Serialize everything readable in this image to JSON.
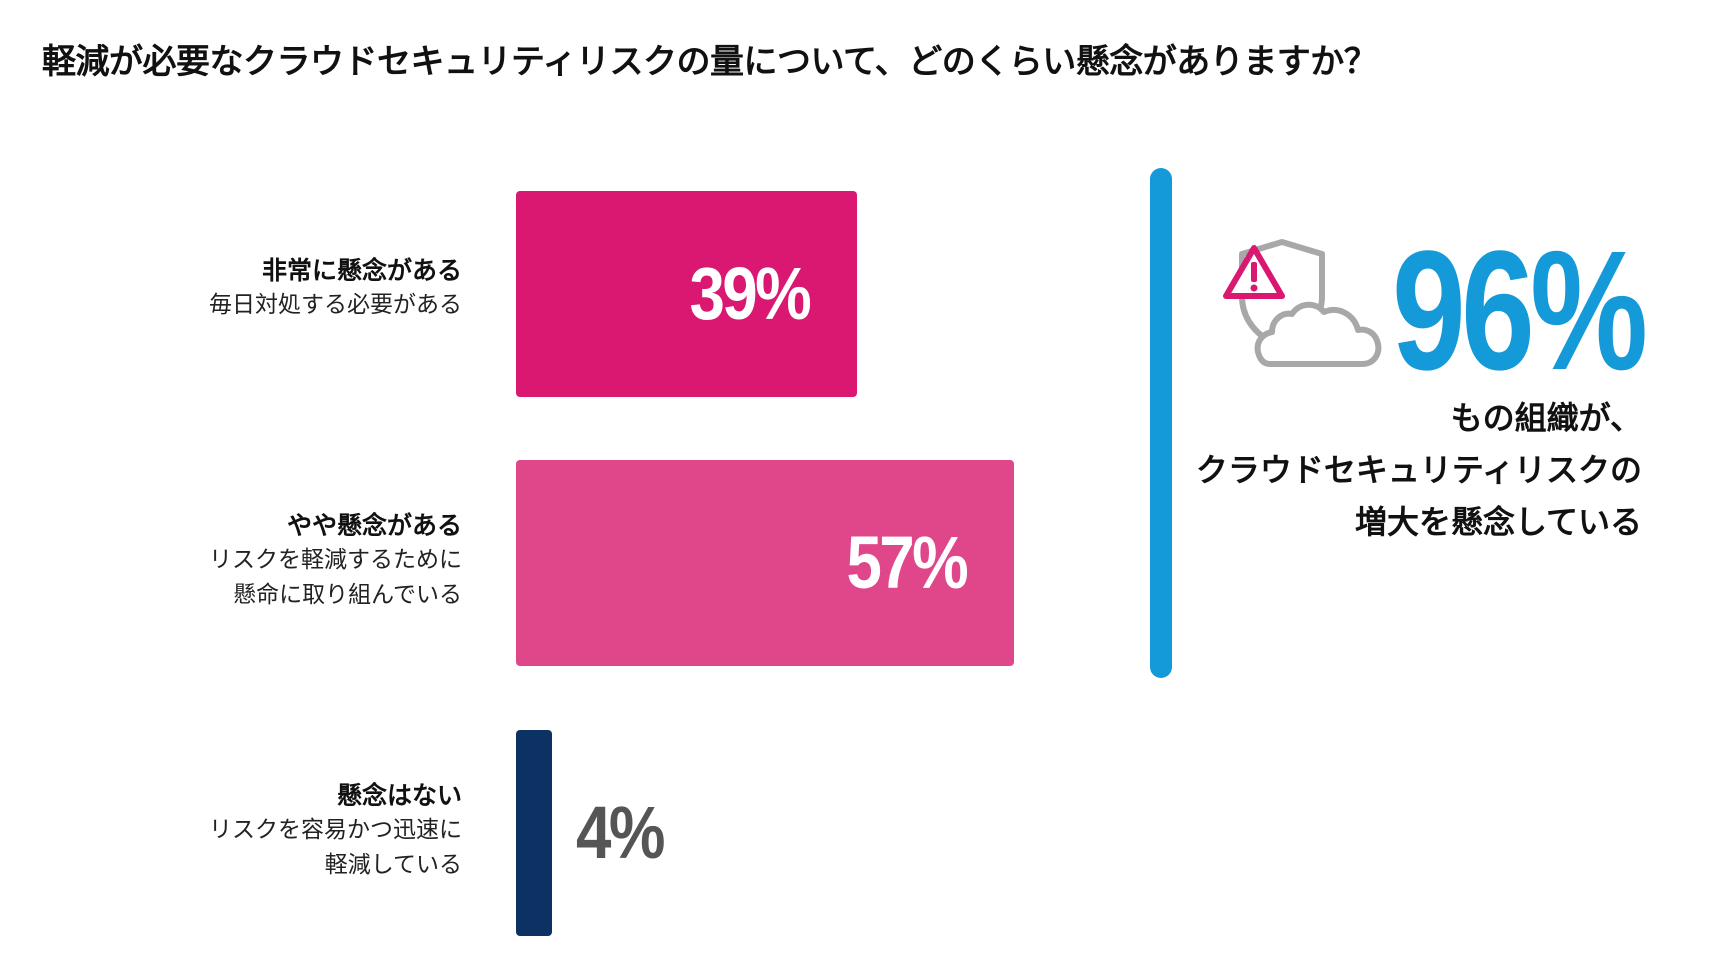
{
  "title": "軽減が必要なクラウドセキュリティリスクの量について、どのくらい懸念がありますか？",
  "colors": {
    "very_concerned": "#da1771",
    "somewhat_concerned": "#e0468a",
    "not_concerned": "#0b3263",
    "highlight": "#149ad8",
    "icon_gray": "#a8a8a8",
    "value_gray": "#555555"
  },
  "chart_data": {
    "type": "bar",
    "orientation": "horizontal",
    "categories": [
      "非常に懸念がある",
      "やや懸念がある",
      "懸念はない"
    ],
    "descriptions": [
      "毎日対処する必要がある",
      "リスクを軽減するために\n懸命に取り組んでいる",
      "リスクを容易かつ迅速に\n軽減している"
    ],
    "values": [
      39,
      57,
      4
    ],
    "value_labels": [
      "39%",
      "57%",
      "4%"
    ],
    "unit": "%",
    "xlim": [
      0,
      68
    ],
    "grid": false,
    "legend": "none",
    "title": "軽減が必要なクラウドセキュリティリスクの量について、どのくらい懸念がありますか？"
  },
  "callout": {
    "icon": "shield-warning-cloud-icon",
    "value": "96%",
    "text": "もの組織が、\nクラウドセキュリティリスクの\n増大を懸念している"
  }
}
